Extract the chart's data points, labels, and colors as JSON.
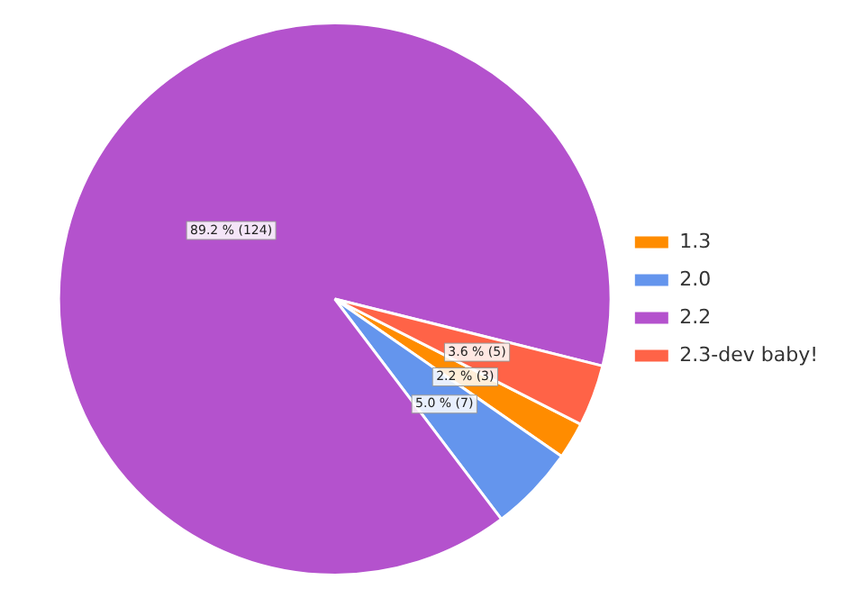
{
  "chart_data": {
    "type": "pie",
    "categories": [
      "1.3",
      "2.0",
      "2.2",
      "2.3-dev baby!"
    ],
    "values": [
      3,
      7,
      124,
      5
    ],
    "colors": [
      "#ff8c00",
      "#6495ed",
      "#b452cd",
      "#ff6347"
    ],
    "value_labels": [
      "2.2 % (3)",
      "5.0 % (7)",
      "89.2 % (124)",
      "3.6 % (5)"
    ],
    "legend": "right"
  }
}
